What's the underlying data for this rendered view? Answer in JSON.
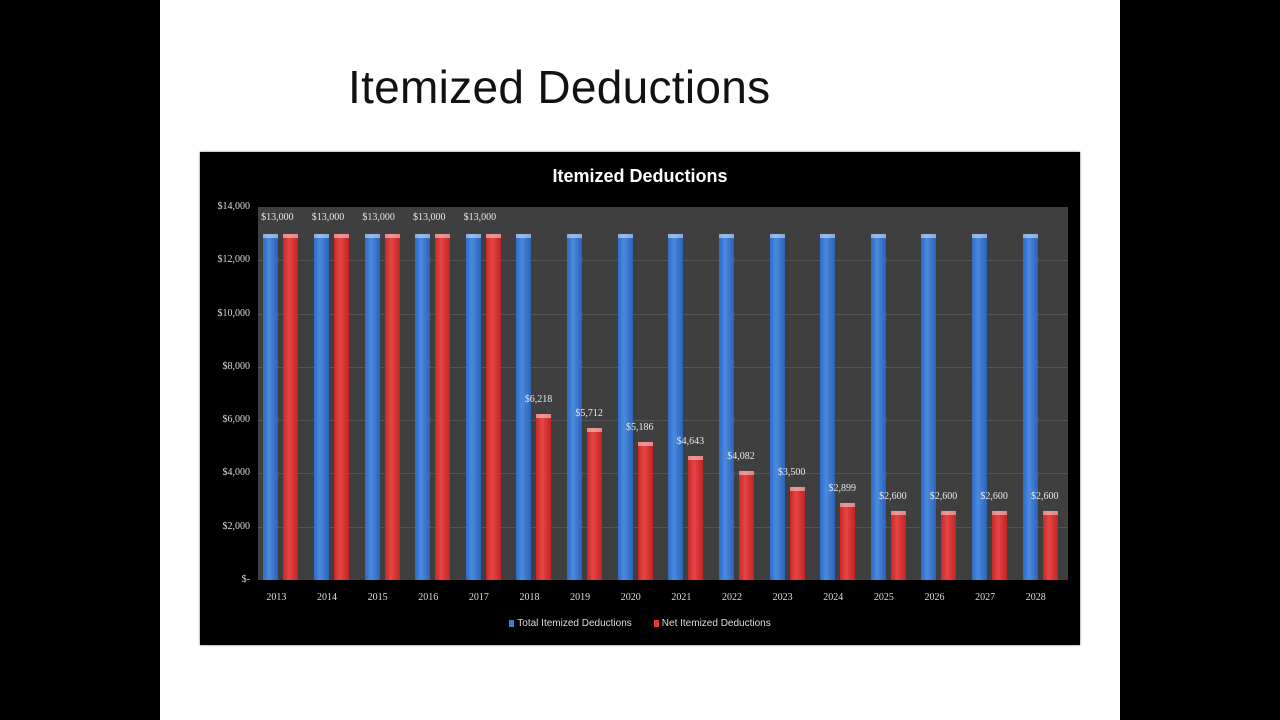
{
  "slide": {
    "title": "Itemized Deductions"
  },
  "colors": {
    "total": "#3a7bd5",
    "net": "#e03a3a",
    "plot_bg": "#3f3f3f",
    "chart_bg": "#000000"
  },
  "chart_data": {
    "type": "bar",
    "title": "Itemized Deductions",
    "xlabel": "",
    "ylabel": "",
    "ylim": [
      0,
      14000
    ],
    "yticks": [
      "$-",
      "$2,000",
      "$4,000",
      "$6,000",
      "$8,000",
      "$10,000",
      "$12,000",
      "$14,000"
    ],
    "grid": true,
    "legend_position": "bottom",
    "categories": [
      "2013",
      "2014",
      "2015",
      "2016",
      "2017",
      "2018",
      "2019",
      "2020",
      "2021",
      "2022",
      "2023",
      "2024",
      "2025",
      "2026",
      "2027",
      "2028"
    ],
    "series": [
      {
        "name": "Total Itemized Deductions",
        "values": [
          13000,
          13000,
          13000,
          13000,
          13000,
          13000,
          13000,
          13000,
          13000,
          13000,
          13000,
          13000,
          13000,
          13000,
          13000,
          13000
        ]
      },
      {
        "name": "Net Itemized Deductions",
        "values": [
          13000,
          13000,
          13000,
          13000,
          13000,
          6218,
          5712,
          5186,
          4643,
          4082,
          3500,
          2899,
          2600,
          2600,
          2600,
          2600
        ],
        "labels": [
          "$13,000",
          "$13,000",
          "$13,000",
          "$13,000",
          "$13,000",
          "$6,218",
          "$5,712",
          "$5,186",
          "$4,643",
          "$4,082",
          "$3,500",
          "$2,899",
          "$2,600",
          "$2,600",
          "$2,600",
          "$2,600"
        ]
      }
    ]
  }
}
